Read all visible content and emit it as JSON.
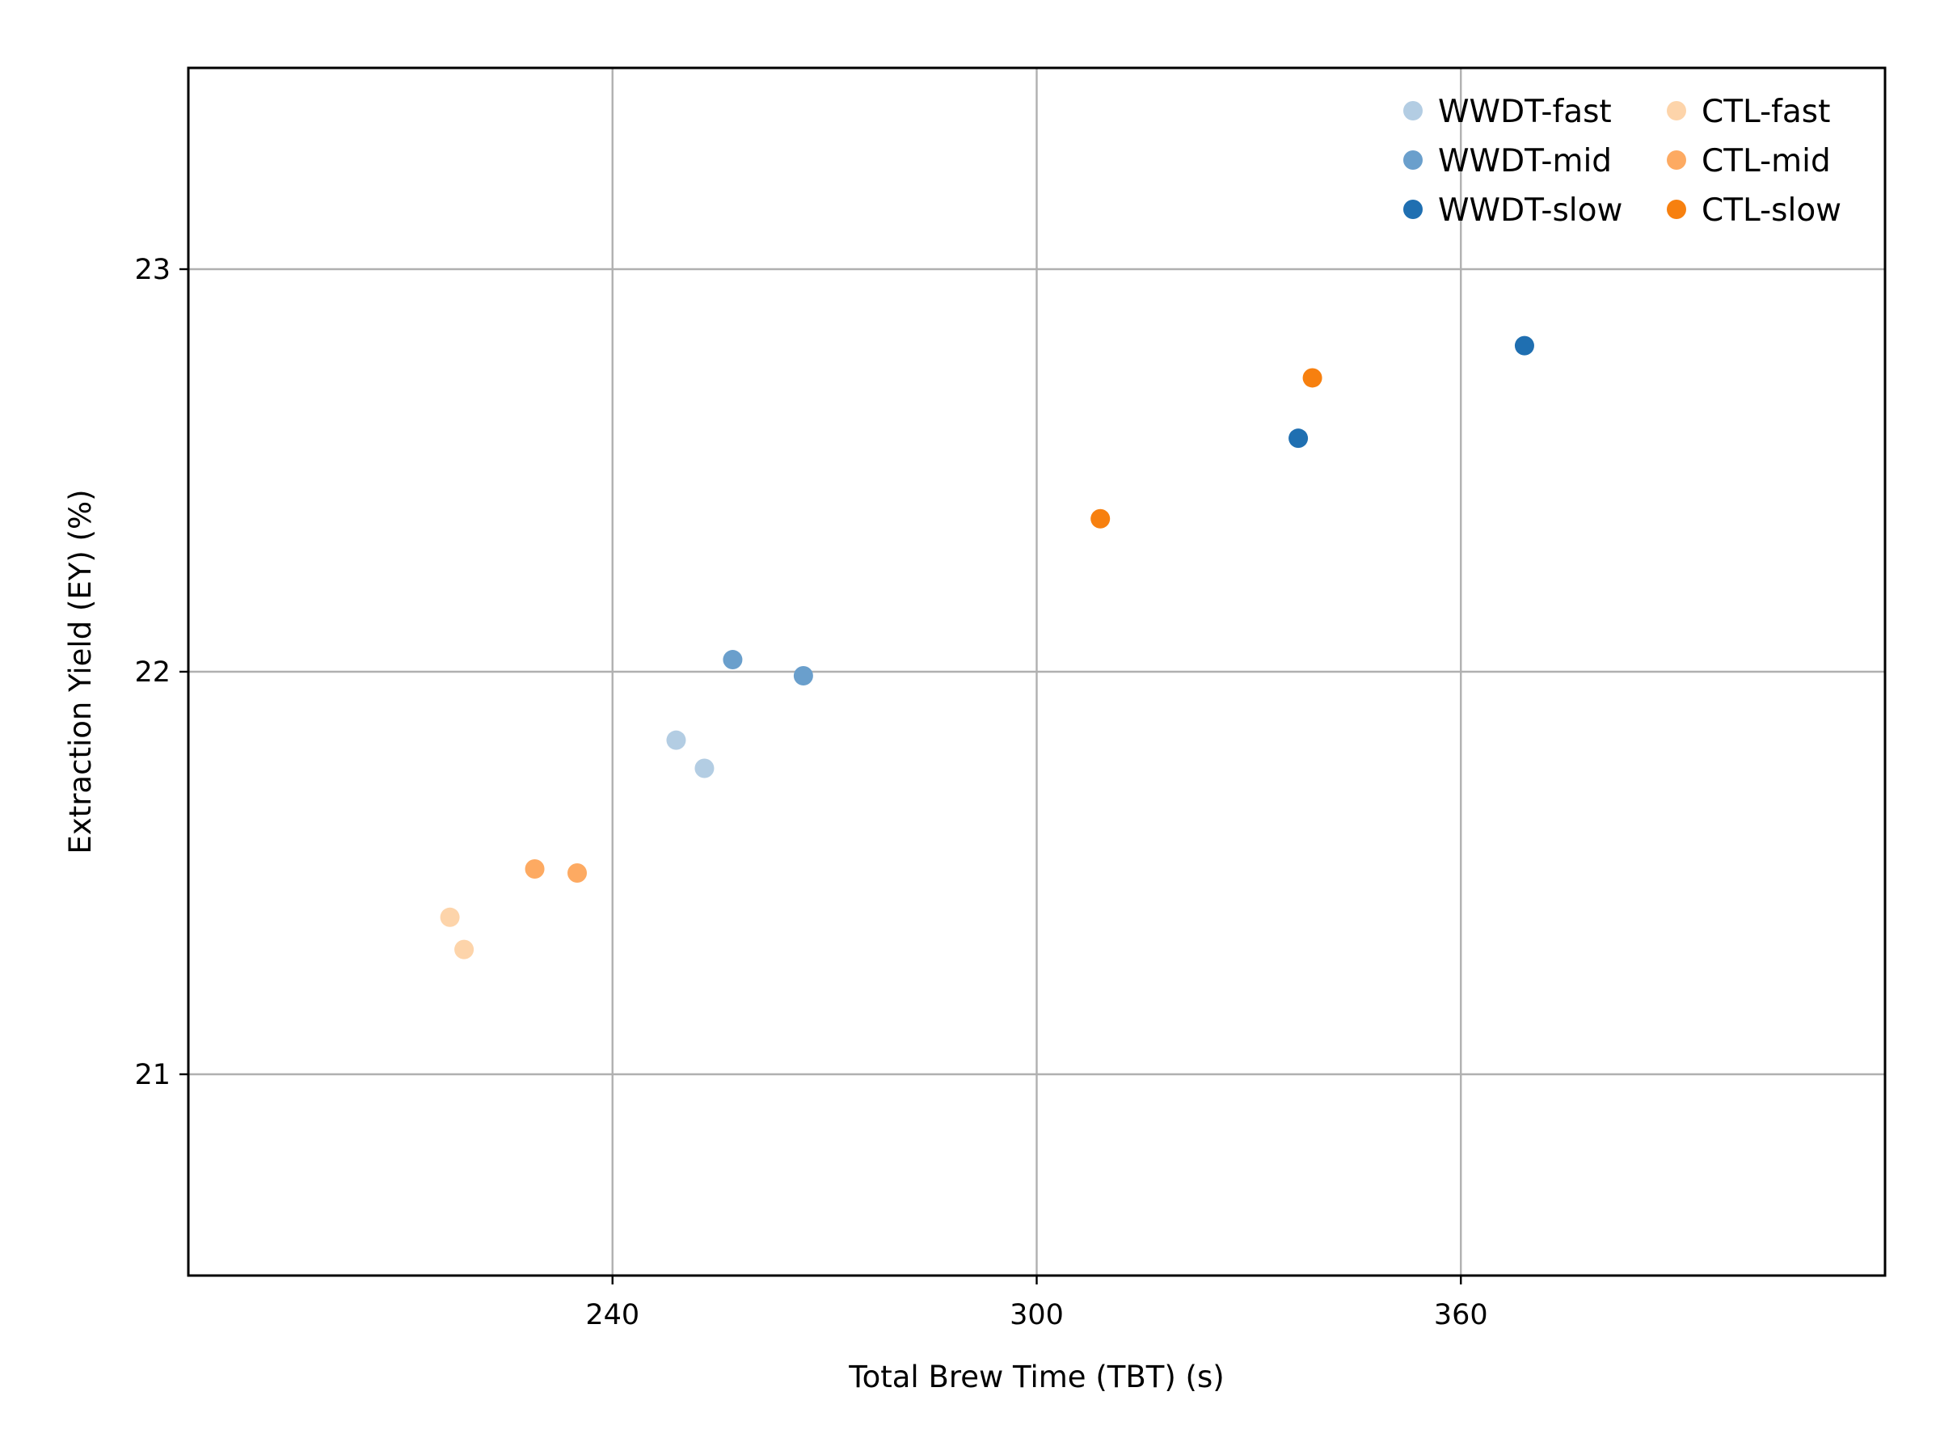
{
  "chart_data": {
    "type": "scatter",
    "title": "",
    "xlabel": "Total Brew Time (TBT) (s)",
    "ylabel": "Extraction Yield (EY) (%)",
    "xlim": [
      180,
      420
    ],
    "ylim": [
      20.5,
      23.5
    ],
    "xticks": [
      240,
      300,
      360
    ],
    "yticks": [
      21,
      22,
      23
    ],
    "grid": true,
    "legend_position": "top-right",
    "legend_columns": 2,
    "series": [
      {
        "name": "WWDT-fast",
        "color": "#b3cde3",
        "x": [
          249,
          253
        ],
        "y": [
          21.83,
          21.76
        ]
      },
      {
        "name": "WWDT-mid",
        "color": "#6a9fcc",
        "x": [
          257,
          267
        ],
        "y": [
          22.03,
          21.99
        ]
      },
      {
        "name": "WWDT-slow",
        "color": "#1f6fb1",
        "x": [
          337,
          369
        ],
        "y": [
          22.58,
          22.81
        ]
      },
      {
        "name": "CTL-fast",
        "color": "#fdd4aa",
        "x": [
          217,
          219
        ],
        "y": [
          21.39,
          21.31
        ]
      },
      {
        "name": "CTL-mid",
        "color": "#fdaa62",
        "x": [
          229,
          235
        ],
        "y": [
          21.51,
          21.5
        ]
      },
      {
        "name": "CTL-slow",
        "color": "#f7800f",
        "x": [
          309,
          339
        ],
        "y": [
          22.38,
          22.73
        ]
      }
    ]
  }
}
